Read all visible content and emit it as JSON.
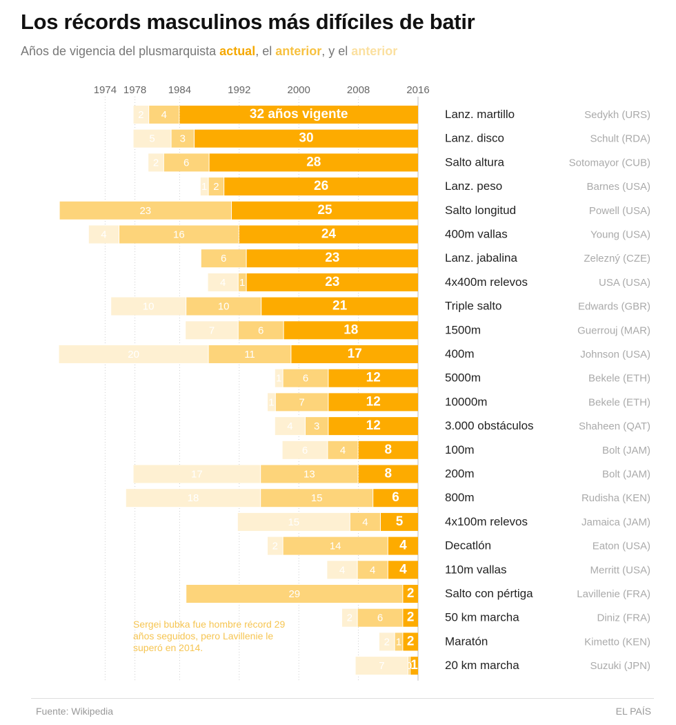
{
  "header": {
    "title": "Los récords masculinos más difíciles de batir",
    "subtitle_prefix": "Años de vigencia del plusmarquista ",
    "key_current": "actual",
    "sep1": ", el ",
    "key_previous": "anterior",
    "sep2": ", y el ",
    "key_previous2": "anterior"
  },
  "annotation": "Sergei bubka fue hombre récord 29 años seguidos, pero Lavillenie le superó en 2014.",
  "footer": {
    "source": "Fuente: Wikipedia",
    "brand": "EL PAÍS"
  },
  "colors": {
    "current": "#fdab00",
    "previous": "#fdd47a",
    "previous2": "#fef0d2",
    "grid": "#cccccc"
  },
  "chart_data": {
    "type": "bar",
    "orientation": "horizontal-stacked",
    "x_ticks": [
      1974,
      1978,
      1984,
      1992,
      2000,
      2008,
      2016
    ],
    "xlim": [
      1974,
      2016
    ],
    "series_names": [
      "actual",
      "anterior",
      "anterior"
    ],
    "rows": [
      {
        "event": "Lanz. martillo",
        "holder": "Sedykh (URS)",
        "current": 32,
        "previous": 4,
        "previous2": 2,
        "current_label": "32 años vigente"
      },
      {
        "event": "Lanz. disco",
        "holder": "Schult (RDA)",
        "current": 30,
        "previous": 3,
        "previous2": 5
      },
      {
        "event": "Salto altura",
        "holder": "Sotomayor (CUB)",
        "current": 28,
        "previous": 6,
        "previous2": 2
      },
      {
        "event": "Lanz. peso",
        "holder": "Barnes (USA)",
        "current": 26,
        "previous": 2,
        "previous2": 1
      },
      {
        "event": "Salto longitud",
        "holder": "Powell (USA)",
        "current": 25,
        "previous": 23,
        "previous2": null
      },
      {
        "event": "400m vallas",
        "holder": "Young (USA)",
        "current": 24,
        "previous": 16,
        "previous2": 4
      },
      {
        "event": "Lanz. jabalina",
        "holder": "Zelezný (CZE)",
        "current": 23,
        "previous": 6,
        "previous2": null
      },
      {
        "event": "4x400m relevos",
        "holder": "USA (USA)",
        "current": 23,
        "previous": 1,
        "previous2": 4
      },
      {
        "event": "Triple salto",
        "holder": "Edwards (GBR)",
        "current": 21,
        "previous": 10,
        "previous2": 10
      },
      {
        "event": "1500m",
        "holder": "Guerrouj (MAR)",
        "current": 18,
        "previous": 6,
        "previous2": 7
      },
      {
        "event": "400m",
        "holder": "Johnson (USA)",
        "current": 17,
        "previous": 11,
        "previous2": 20
      },
      {
        "event": "5000m",
        "holder": "Bekele (ETH)",
        "current": 12,
        "previous": 6,
        "previous2": 1
      },
      {
        "event": "10000m",
        "holder": "Bekele (ETH)",
        "current": 12,
        "previous": 7,
        "previous2": 1
      },
      {
        "event": "3.000 obstáculos",
        "holder": "Shaheen (QAT)",
        "current": 12,
        "previous": 3,
        "previous2": 4
      },
      {
        "event": "100m",
        "holder": "Bolt (JAM)",
        "current": 8,
        "previous": 4,
        "previous2": 6
      },
      {
        "event": "200m",
        "holder": "Bolt (JAM)",
        "current": 8,
        "previous": 13,
        "previous2": 17
      },
      {
        "event": "800m",
        "holder": "Rudisha (KEN)",
        "current": 6,
        "previous": 15,
        "previous2": 18
      },
      {
        "event": "4x100m relevos",
        "holder": "Jamaica (JAM)",
        "current": 5,
        "previous": 4,
        "previous2": 15
      },
      {
        "event": "Decatlón",
        "holder": "Eaton (USA)",
        "current": 4,
        "previous": 14,
        "previous2": 2
      },
      {
        "event": "110m vallas",
        "holder": "Merritt (USA)",
        "current": 4,
        "previous": 4,
        "previous2": 4
      },
      {
        "event": "Salto con pértiga",
        "holder": "Lavillenie (FRA)",
        "current": 2,
        "previous": 29,
        "previous2": null
      },
      {
        "event": "50 km marcha",
        "holder": "Diniz (FRA)",
        "current": 2,
        "previous": 6,
        "previous2": 2
      },
      {
        "event": "Maratón",
        "holder": "Kimetto (KEN)",
        "current": 2,
        "previous": 1,
        "previous2": 2
      },
      {
        "event": "20 km marcha",
        "holder": "Suzuki (JPN)",
        "current": 1,
        "previous": 0,
        "previous2": 7
      }
    ]
  }
}
